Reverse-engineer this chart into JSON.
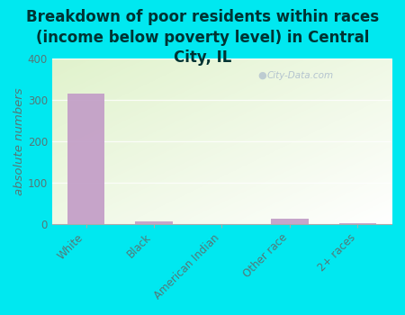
{
  "title": "Breakdown of poor residents within races\n(income below poverty level) in Central\nCity, IL",
  "categories": [
    "White",
    "Black",
    "American Indian",
    "Other race",
    "2+ races"
  ],
  "values": [
    315,
    5,
    0,
    12,
    2
  ],
  "bar_color": "#c4a0c8",
  "ylabel": "absolute numbers",
  "ylim": [
    0,
    400
  ],
  "yticks": [
    0,
    100,
    200,
    300,
    400
  ],
  "background_outer": "#00e8f0",
  "watermark": "City-Data.com",
  "title_fontsize": 12,
  "ylabel_fontsize": 9.5,
  "tick_fontsize": 8.5,
  "title_color": "#003333"
}
